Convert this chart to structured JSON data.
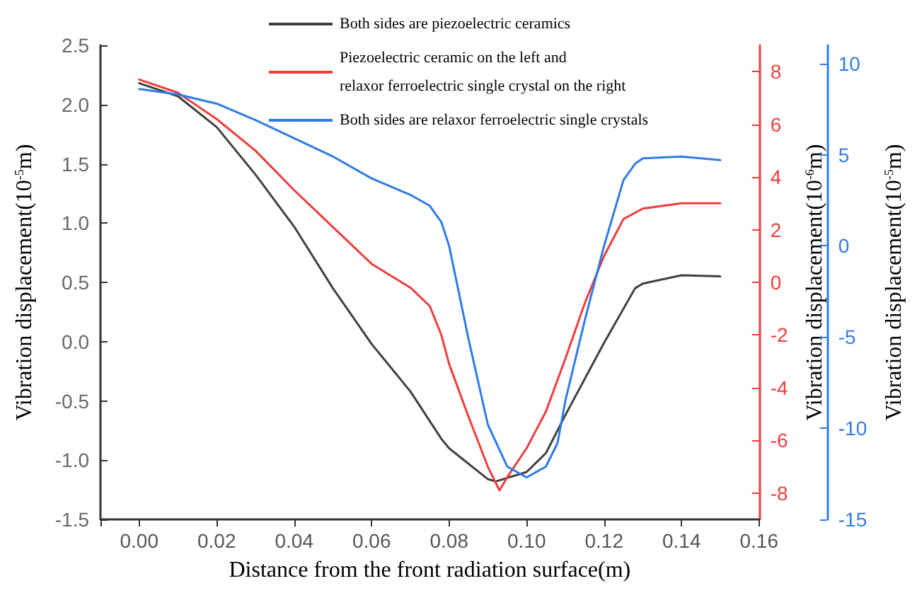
{
  "chart_data": {
    "type": "line",
    "xlabel": "Distance from the front radiation surface(m)",
    "ylabel": "Vibration displacement(10$^{-5}$m)",
    "y2label": "Vibration displacement(10$^{-6}$m)",
    "y3label": "Vibration displacement(10$^{-5}$m)",
    "xlim": [
      -0.01,
      0.16
    ],
    "xticks": [
      {
        "value": -0.01,
        "label": null
      },
      {
        "value": 0,
        "label": "0.00"
      },
      {
        "value": 0.02,
        "label": "0.02"
      },
      {
        "value": 0.04,
        "label": "0.04"
      },
      {
        "value": 0.06,
        "label": "0.06"
      },
      {
        "value": 0.08,
        "label": "0.08"
      },
      {
        "value": 0.1,
        "label": "0.10"
      },
      {
        "value": 0.12,
        "label": "0.12"
      },
      {
        "value": 0.14,
        "label": "0.14"
      },
      {
        "value": 0.16,
        "label": "0.16"
      }
    ],
    "ylim": [
      -1.5,
      2.5
    ],
    "yticks": [
      {
        "value": -1.5,
        "label": "-1.5"
      },
      {
        "value": -1,
        "label": "-1.0"
      },
      {
        "value": -0.5,
        "label": "-0.5"
      },
      {
        "value": 0,
        "label": "0.0"
      },
      {
        "value": 0.5,
        "label": "0.5"
      },
      {
        "value": 1,
        "label": "1.0"
      },
      {
        "value": 1.5,
        "label": "1.5"
      },
      {
        "value": 2,
        "label": "2.0"
      },
      {
        "value": 2.5,
        "label": "2.5"
      }
    ],
    "y2lim": [
      -9,
      9
    ],
    "y2ticks": [
      -8,
      -6,
      -4,
      -2,
      0,
      2,
      4,
      6,
      8
    ],
    "y3lim": [
      -15,
      11
    ],
    "y3ticks": [
      -15,
      -10,
      -5,
      0,
      5,
      10
    ],
    "grid": false,
    "legend": "top",
    "marker": "none",
    "line_style": "solid",
    "series": [
      {
        "name": "Both sides are piezoelectric ceramics",
        "color": "#404040",
        "axis": "y",
        "x": [
          0,
          0.01,
          0.02,
          0.03,
          0.04,
          0.05,
          0.06,
          0.07,
          0.078,
          0.08,
          0.09,
          0.092,
          0.1,
          0.105,
          0.11,
          0.12,
          0.128,
          0.13,
          0.14,
          0.15
        ],
        "values": [
          2.18,
          2.07,
          1.81,
          1.41,
          0.97,
          0.45,
          -0.02,
          -0.42,
          -0.82,
          -0.9,
          -1.16,
          -1.18,
          -1.1,
          -0.94,
          -0.62,
          -0.01,
          0.45,
          0.49,
          0.56,
          0.55
        ]
      },
      {
        "name": "Piezoelectric ceramic on the left and\nrelaxor ferroelectric single crystal on the right",
        "color": "#f03c3c",
        "axis": "y2",
        "x": [
          0,
          0.01,
          0.02,
          0.03,
          0.04,
          0.05,
          0.06,
          0.07,
          0.075,
          0.078,
          0.08,
          0.085,
          0.09,
          0.093,
          0.095,
          0.1,
          0.105,
          0.11,
          0.115,
          0.12,
          0.125,
          0.13,
          0.14,
          0.15
        ],
        "values": [
          7.7,
          7.2,
          6.2,
          5.0,
          3.5,
          2.1,
          0.7,
          -0.2,
          -0.9,
          -2.0,
          -3.1,
          -5.1,
          -7.0,
          -7.9,
          -7.4,
          -6.3,
          -4.9,
          -2.9,
          -0.8,
          1.0,
          2.4,
          2.8,
          3.0,
          3.0
        ]
      },
      {
        "name": "Both sides are relaxor ferroelectric single crystals",
        "color": "#2f7be8",
        "axis": "y3",
        "x": [
          0,
          0.01,
          0.02,
          0.03,
          0.04,
          0.05,
          0.06,
          0.07,
          0.075,
          0.078,
          0.08,
          0.085,
          0.09,
          0.095,
          0.1,
          0.105,
          0.108,
          0.11,
          0.115,
          0.12,
          0.125,
          0.128,
          0.13,
          0.14,
          0.15
        ],
        "values": [
          8.6,
          8.3,
          7.8,
          6.9,
          5.9,
          4.9,
          3.7,
          2.8,
          2.2,
          1.3,
          0.0,
          -5.1,
          -9.8,
          -12.1,
          -12.7,
          -12.1,
          -10.8,
          -8.5,
          -4.1,
          0.0,
          3.6,
          4.5,
          4.8,
          4.9,
          4.7
        ]
      }
    ]
  }
}
